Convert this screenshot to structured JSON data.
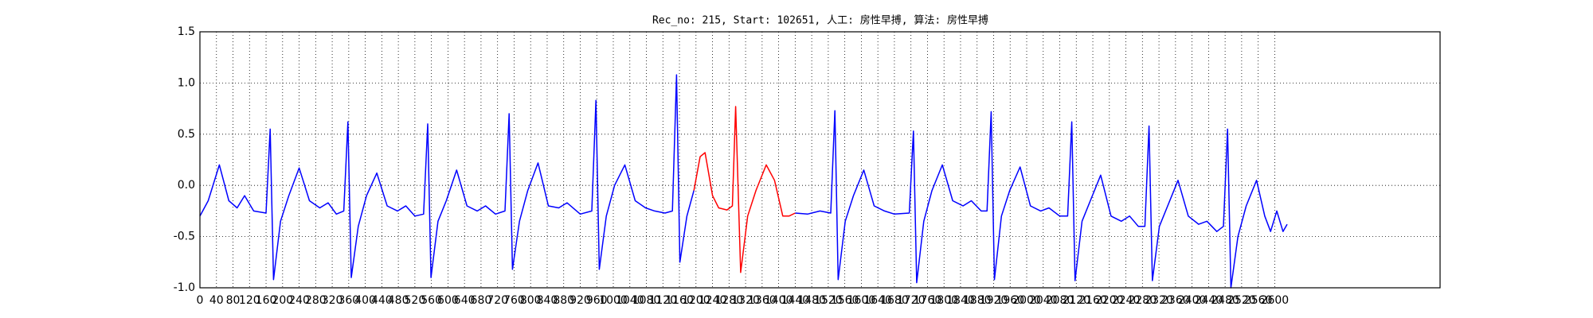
{
  "chart_data": {
    "type": "line",
    "title": "Rec_no: 215, Start: 102651, 人工: 房性早搏, 算法: 房性早搏",
    "xlim": [
      0,
      3000
    ],
    "xticks": [
      0,
      40,
      80,
      120,
      160,
      200,
      240,
      280,
      320,
      360,
      400,
      440,
      480,
      520,
      560,
      600,
      640,
      680,
      720,
      760,
      800,
      840,
      880,
      920,
      960,
      1000,
      1040,
      1080,
      1120,
      1160,
      1200,
      1240,
      1280,
      1320,
      1360,
      1400,
      1440,
      1480,
      1520,
      1560,
      1600,
      1640,
      1680,
      1720,
      1760,
      1800,
      1840,
      1880,
      1920,
      1960,
      2000,
      2040,
      2080,
      2120,
      2160,
      2200,
      2240,
      2280,
      2320,
      2360,
      2400,
      2440,
      2480,
      2520,
      2560,
      2600
    ],
    "ylim": [
      -1.0,
      1.5
    ],
    "yticks": [
      {
        "value": -1.0,
        "label": "-1.0"
      },
      -0.5,
      {
        "value": 0.0,
        "label": "0.0"
      },
      0.5,
      {
        "value": 1.0,
        "label": "1.0"
      },
      1.5
    ],
    "grid": true,
    "series": [
      {
        "color": "#0000ff",
        "x": [
          0,
          20,
          47,
          70,
          90,
          108,
          130,
          160,
          170,
          178,
          195,
          215,
          240,
          265,
          290,
          310,
          330,
          348,
          358,
          366,
          383,
          403,
          428,
          453,
          478,
          498,
          520,
          541,
          551,
          559,
          576,
          596,
          621,
          646,
          671,
          691,
          715,
          738,
          748,
          756,
          773,
          793,
          818,
          843,
          868,
          888,
          920,
          948,
          958,
          966,
          983,
          1003,
          1028,
          1053,
          1078,
          1100,
          1125,
          1143,
          1153,
          1161,
          1178,
          1195
        ],
        "values": [
          -0.3,
          -0.15,
          0.2,
          -0.15,
          -0.22,
          -0.1,
          -0.25,
          -0.27,
          0.55,
          -0.92,
          -0.35,
          -0.1,
          0.17,
          -0.15,
          -0.22,
          -0.17,
          -0.28,
          -0.25,
          0.62,
          -0.9,
          -0.4,
          -0.1,
          0.12,
          -0.2,
          -0.25,
          -0.2,
          -0.3,
          -0.28,
          0.6,
          -0.9,
          -0.35,
          -0.15,
          0.15,
          -0.2,
          -0.25,
          -0.2,
          -0.28,
          -0.25,
          0.7,
          -0.82,
          -0.35,
          -0.05,
          0.22,
          -0.2,
          -0.22,
          -0.17,
          -0.28,
          -0.25,
          0.83,
          -0.82,
          -0.3,
          0,
          0.2,
          -0.15,
          -0.22,
          -0.25,
          -0.27,
          -0.25,
          1.08,
          -0.75,
          -0.3,
          -0.05
        ]
      },
      {
        "color": "#ff0000",
        "x": [
          1195,
          1210,
          1222,
          1240,
          1255,
          1275,
          1288,
          1296,
          1308,
          1325,
          1345,
          1370,
          1390,
          1410,
          1425,
          1440
        ],
        "values": [
          -0.05,
          0.28,
          0.32,
          -0.1,
          -0.22,
          -0.24,
          -0.2,
          0.77,
          -0.85,
          -0.3,
          -0.05,
          0.2,
          0.05,
          -0.3,
          -0.3,
          -0.27
        ]
      },
      {
        "color": "#0000ff",
        "x": [
          1440,
          1470,
          1500,
          1526,
          1536,
          1544,
          1561,
          1581,
          1606,
          1631,
          1656,
          1680,
          1716,
          1726,
          1734,
          1751,
          1771,
          1796,
          1821,
          1846,
          1866,
          1890,
          1904,
          1914,
          1922,
          1939,
          1959,
          1984,
          2009,
          2034,
          2054,
          2080,
          2099,
          2109,
          2117,
          2134,
          2154,
          2179,
          2204,
          2229,
          2249,
          2270,
          2286,
          2296,
          2304,
          2321,
          2341,
          2366,
          2391,
          2416,
          2436,
          2460,
          2476,
          2486,
          2494,
          2511,
          2531,
          2556,
          2576,
          2590,
          2605,
          2620,
          2630
        ],
        "values": [
          -0.27,
          -0.28,
          -0.25,
          -0.27,
          0.73,
          -0.92,
          -0.35,
          -0.1,
          0.15,
          -0.2,
          -0.25,
          -0.28,
          -0.27,
          0.53,
          -0.95,
          -0.35,
          -0.05,
          0.2,
          -0.15,
          -0.2,
          -0.15,
          -0.25,
          -0.25,
          0.72,
          -0.92,
          -0.3,
          -0.05,
          0.18,
          -0.2,
          -0.25,
          -0.22,
          -0.3,
          -0.3,
          0.62,
          -0.93,
          -0.35,
          -0.15,
          0.1,
          -0.3,
          -0.35,
          -0.3,
          -0.4,
          -0.4,
          0.58,
          -0.93,
          -0.4,
          -0.2,
          0.05,
          -0.3,
          -0.38,
          -0.35,
          -0.45,
          -0.4,
          0.55,
          -1.0,
          -0.5,
          -0.2,
          0.05,
          -0.3,
          -0.45,
          -0.25,
          -0.45,
          -0.38
        ]
      }
    ]
  }
}
